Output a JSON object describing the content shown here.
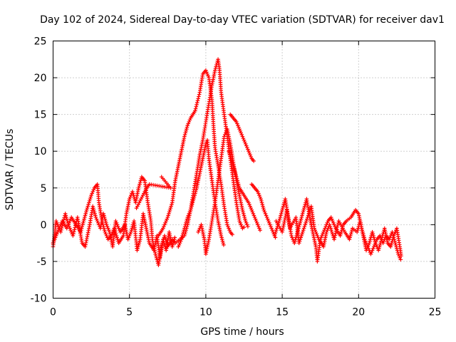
{
  "chart_data": {
    "type": "scatter",
    "title": "Day 102 of 2024, Sidereal Day-to-day VTEC variation (SDTVAR) for receiver dav1",
    "xlabel": "GPS time / hours",
    "ylabel": "SDTVAR / TECUs",
    "xlim": [
      0,
      25
    ],
    "ylim": [
      -10,
      25
    ],
    "xticks": [
      "0",
      "5",
      "10",
      "15",
      "20",
      "25"
    ],
    "yticks": [
      "-10",
      "-5",
      "0",
      "5",
      "10",
      "15",
      "20",
      "25"
    ],
    "grid": true,
    "marker": "plus",
    "series": [
      {
        "name": "dav1",
        "color": "#ff0000",
        "segments": [
          [
            [
              0.0,
              -2.5
            ],
            [
              0.3,
              -1.0
            ],
            [
              0.6,
              0.5
            ],
            [
              0.9,
              -0.5
            ],
            [
              1.2,
              1.0
            ],
            [
              1.5,
              0.0
            ],
            [
              1.8,
              -1.0
            ],
            [
              2.0,
              0.5
            ],
            [
              2.2,
              2.0
            ],
            [
              2.5,
              4.0
            ],
            [
              2.7,
              5.0
            ],
            [
              2.9,
              5.5
            ],
            [
              3.0,
              3.0
            ],
            [
              3.2,
              0.5
            ],
            [
              3.4,
              -1.0
            ],
            [
              3.6,
              -2.0
            ],
            [
              3.8,
              -1.5
            ],
            [
              4.0,
              -0.5
            ],
            [
              4.3,
              -2.5
            ],
            [
              4.6,
              -1.5
            ],
            [
              4.8,
              1.5
            ],
            [
              5.0,
              3.5
            ],
            [
              5.2,
              4.5
            ],
            [
              5.4,
              3.0
            ],
            [
              5.6,
              5.0
            ],
            [
              5.8,
              6.5
            ],
            [
              6.0,
              6.0
            ],
            [
              6.2,
              3.0
            ],
            [
              6.4,
              0.5
            ],
            [
              6.5,
              -2.0
            ],
            [
              6.7,
              -4.0
            ],
            [
              6.9,
              -5.5
            ],
            [
              7.1,
              -3.0
            ],
            [
              7.3,
              -1.5
            ],
            [
              7.5,
              -3.0
            ],
            [
              7.8,
              -2.0
            ],
            [
              8.0,
              -2.5
            ],
            [
              8.3,
              -2.0
            ],
            [
              8.6,
              -1.5
            ],
            [
              8.8,
              0.0
            ],
            [
              9.0,
              2.0
            ],
            [
              9.2,
              4.5
            ],
            [
              9.4,
              7.0
            ],
            [
              9.6,
              9.5
            ],
            [
              9.8,
              11.5
            ],
            [
              10.0,
              14.0
            ],
            [
              10.2,
              16.5
            ],
            [
              10.4,
              19.0
            ],
            [
              10.6,
              21.0
            ],
            [
              10.8,
              22.5
            ],
            [
              10.9,
              21.0
            ],
            [
              11.0,
              18.0
            ],
            [
              11.2,
              15.0
            ],
            [
              11.4,
              12.0
            ],
            [
              11.6,
              9.0
            ],
            [
              11.8,
              6.0
            ],
            [
              12.0,
              3.0
            ],
            [
              12.2,
              0.5
            ],
            [
              12.4,
              -0.5
            ],
            [
              12.6,
              -0.2
            ]
          ],
          [
            [
              6.9,
              -1.5
            ],
            [
              7.2,
              -0.5
            ],
            [
              7.5,
              1.0
            ],
            [
              7.8,
              3.0
            ],
            [
              8.0,
              6.0
            ],
            [
              8.2,
              8.0
            ],
            [
              8.4,
              10.0
            ],
            [
              8.6,
              12.0
            ],
            [
              8.8,
              13.5
            ],
            [
              9.0,
              14.5
            ],
            [
              9.3,
              15.5
            ],
            [
              9.6,
              18.0
            ],
            [
              9.8,
              20.5
            ],
            [
              10.0,
              21.0
            ],
            [
              10.2,
              20.0
            ],
            [
              10.4,
              17.0
            ],
            [
              10.5,
              13.5
            ],
            [
              10.6,
              10.5
            ],
            [
              10.8,
              8.0
            ],
            [
              11.0,
              5.5
            ],
            [
              11.2,
              2.5
            ],
            [
              11.4,
              0.0
            ],
            [
              11.6,
              -1.0
            ],
            [
              11.8,
              -1.5
            ]
          ],
          [
            [
              8.2,
              -3.0
            ],
            [
              8.4,
              -2.0
            ],
            [
              8.6,
              -0.5
            ],
            [
              8.8,
              1.0
            ],
            [
              9.0,
              2.0
            ],
            [
              9.2,
              3.5
            ],
            [
              9.4,
              5.0
            ],
            [
              9.6,
              7.0
            ],
            [
              9.8,
              9.0
            ],
            [
              10.0,
              11.0
            ],
            [
              10.1,
              11.5
            ],
            [
              10.2,
              9.0
            ],
            [
              10.4,
              6.0
            ],
            [
              10.6,
              3.0
            ],
            [
              10.8,
              0.5
            ],
            [
              11.0,
              -1.5
            ],
            [
              11.2,
              -3.0
            ]
          ],
          [
            [
              9.5,
              -1.0
            ],
            [
              9.7,
              0.0
            ],
            [
              9.9,
              -2.0
            ],
            [
              10.0,
              -4.0
            ],
            [
              10.2,
              -2.0
            ],
            [
              10.4,
              0.5
            ],
            [
              10.6,
              3.0
            ],
            [
              10.8,
              6.0
            ],
            [
              11.0,
              9.0
            ],
            [
              11.2,
              12.0
            ],
            [
              11.4,
              13.0
            ],
            [
              11.6,
              11.0
            ],
            [
              11.8,
              8.5
            ],
            [
              12.0,
              6.0
            ],
            [
              12.2,
              4.0
            ],
            [
              12.4,
              2.0
            ],
            [
              12.6,
              0.5
            ],
            [
              12.8,
              -0.5
            ]
          ],
          [
            [
              11.6,
              15.0
            ],
            [
              11.8,
              14.5
            ],
            [
              12.0,
              14.0
            ],
            [
              12.2,
              13.0
            ],
            [
              12.4,
              12.0
            ],
            [
              12.6,
              11.0
            ],
            [
              12.8,
              10.0
            ],
            [
              13.0,
              9.0
            ],
            [
              13.2,
              8.5
            ]
          ],
          [
            [
              11.5,
              10.0
            ],
            [
              11.8,
              8.0
            ],
            [
              12.0,
              6.5
            ],
            [
              12.2,
              5.0
            ],
            [
              12.5,
              4.0
            ],
            [
              12.8,
              3.0
            ],
            [
              13.0,
              2.0
            ],
            [
              13.2,
              1.0
            ],
            [
              13.4,
              0.0
            ],
            [
              13.6,
              -1.0
            ]
          ],
          [
            [
              13.0,
              5.5
            ],
            [
              13.2,
              5.0
            ],
            [
              13.4,
              4.5
            ],
            [
              13.6,
              3.5
            ],
            [
              13.8,
              2.0
            ],
            [
              14.0,
              1.0
            ],
            [
              14.2,
              0.0
            ],
            [
              14.4,
              -1.0
            ],
            [
              14.6,
              -2.0
            ]
          ],
          [
            [
              14.5,
              -1.5
            ],
            [
              14.8,
              0.5
            ],
            [
              15.0,
              2.0
            ],
            [
              15.2,
              3.5
            ],
            [
              15.4,
              1.0
            ],
            [
              15.6,
              -1.5
            ],
            [
              15.8,
              -2.5
            ],
            [
              16.0,
              -1.0
            ],
            [
              16.2,
              0.5
            ],
            [
              16.4,
              2.0
            ],
            [
              16.6,
              3.5
            ],
            [
              16.8,
              1.0
            ],
            [
              17.0,
              -1.0
            ],
            [
              17.2,
              -3.0
            ],
            [
              17.3,
              -5.0
            ],
            [
              17.5,
              -2.0
            ],
            [
              17.8,
              -0.5
            ],
            [
              18.0,
              0.5
            ],
            [
              18.2,
              1.0
            ],
            [
              18.5,
              -0.5
            ],
            [
              18.8,
              -1.5
            ],
            [
              19.0,
              0.0
            ],
            [
              19.2,
              0.5
            ],
            [
              19.5,
              1.0
            ],
            [
              19.8,
              2.0
            ],
            [
              20.0,
              1.5
            ],
            [
              20.2,
              -0.5
            ],
            [
              20.4,
              -2.0
            ],
            [
              20.6,
              -3.0
            ],
            [
              20.8,
              -4.0
            ],
            [
              21.0,
              -3.0
            ],
            [
              21.2,
              -2.0
            ],
            [
              21.4,
              -1.5
            ],
            [
              21.6,
              -2.5
            ],
            [
              21.8,
              -1.5
            ],
            [
              22.0,
              -2.0
            ],
            [
              22.2,
              -1.0
            ],
            [
              22.4,
              -2.5
            ],
            [
              22.6,
              -4.0
            ],
            [
              22.8,
              -5.0
            ]
          ],
          [
            [
              0.0,
              -3.0
            ],
            [
              0.2,
              0.5
            ],
            [
              0.5,
              -1.0
            ],
            [
              0.8,
              1.5
            ],
            [
              1.0,
              0.0
            ],
            [
              1.3,
              -1.5
            ],
            [
              1.6,
              1.0
            ],
            [
              1.9,
              -2.5
            ],
            [
              2.1,
              -3.0
            ],
            [
              2.4,
              0.0
            ],
            [
              2.6,
              2.5
            ],
            [
              2.8,
              1.0
            ],
            [
              3.1,
              -0.5
            ],
            [
              3.3,
              1.5
            ],
            [
              3.5,
              0.0
            ],
            [
              3.7,
              -1.0
            ],
            [
              3.9,
              -3.0
            ],
            [
              4.1,
              0.5
            ],
            [
              4.4,
              -1.0
            ],
            [
              4.7,
              0.0
            ],
            [
              4.9,
              -2.0
            ],
            [
              5.1,
              -1.0
            ],
            [
              5.3,
              0.5
            ],
            [
              5.5,
              -3.5
            ],
            [
              5.7,
              -2.0
            ],
            [
              5.9,
              1.5
            ],
            [
              6.1,
              -0.5
            ],
            [
              6.3,
              -2.5
            ],
            [
              6.6,
              -3.5
            ],
            [
              6.8,
              -1.5
            ],
            [
              7.0,
              -4.5
            ],
            [
              7.2,
              -2.0
            ],
            [
              7.4,
              -3.5
            ],
            [
              7.6,
              -1.0
            ],
            [
              7.8,
              -3.0
            ],
            [
              8.0,
              -1.5
            ]
          ],
          [
            [
              7.1,
              6.5
            ],
            [
              7.7,
              5.0
            ],
            [
              6.3,
              5.5
            ],
            [
              6.0,
              4.5
            ],
            [
              5.4,
              2.0
            ]
          ],
          [
            [
              14.6,
              0.5
            ],
            [
              15.0,
              -1.0
            ],
            [
              15.3,
              2.0
            ],
            [
              15.5,
              -0.5
            ],
            [
              15.9,
              1.0
            ],
            [
              16.1,
              -2.5
            ],
            [
              16.5,
              0.0
            ],
            [
              16.9,
              2.5
            ],
            [
              17.1,
              -0.5
            ],
            [
              17.4,
              -2.0
            ],
            [
              17.7,
              -3.0
            ],
            [
              17.9,
              -1.0
            ],
            [
              18.1,
              0.0
            ],
            [
              18.4,
              -2.0
            ],
            [
              18.7,
              0.5
            ],
            [
              19.1,
              -1.0
            ],
            [
              19.4,
              -2.0
            ],
            [
              19.6,
              -0.5
            ],
            [
              19.9,
              -1.0
            ],
            [
              20.1,
              0.5
            ],
            [
              20.3,
              -1.5
            ],
            [
              20.5,
              -3.5
            ],
            [
              20.7,
              -2.5
            ],
            [
              20.9,
              -1.0
            ],
            [
              21.1,
              -2.5
            ],
            [
              21.3,
              -3.5
            ],
            [
              21.5,
              -2.0
            ],
            [
              21.7,
              -0.5
            ],
            [
              21.9,
              -2.5
            ],
            [
              22.1,
              -3.0
            ],
            [
              22.3,
              -1.5
            ],
            [
              22.5,
              -0.5
            ],
            [
              22.7,
              -3.0
            ],
            [
              22.8,
              -4.5
            ]
          ]
        ]
      }
    ]
  }
}
